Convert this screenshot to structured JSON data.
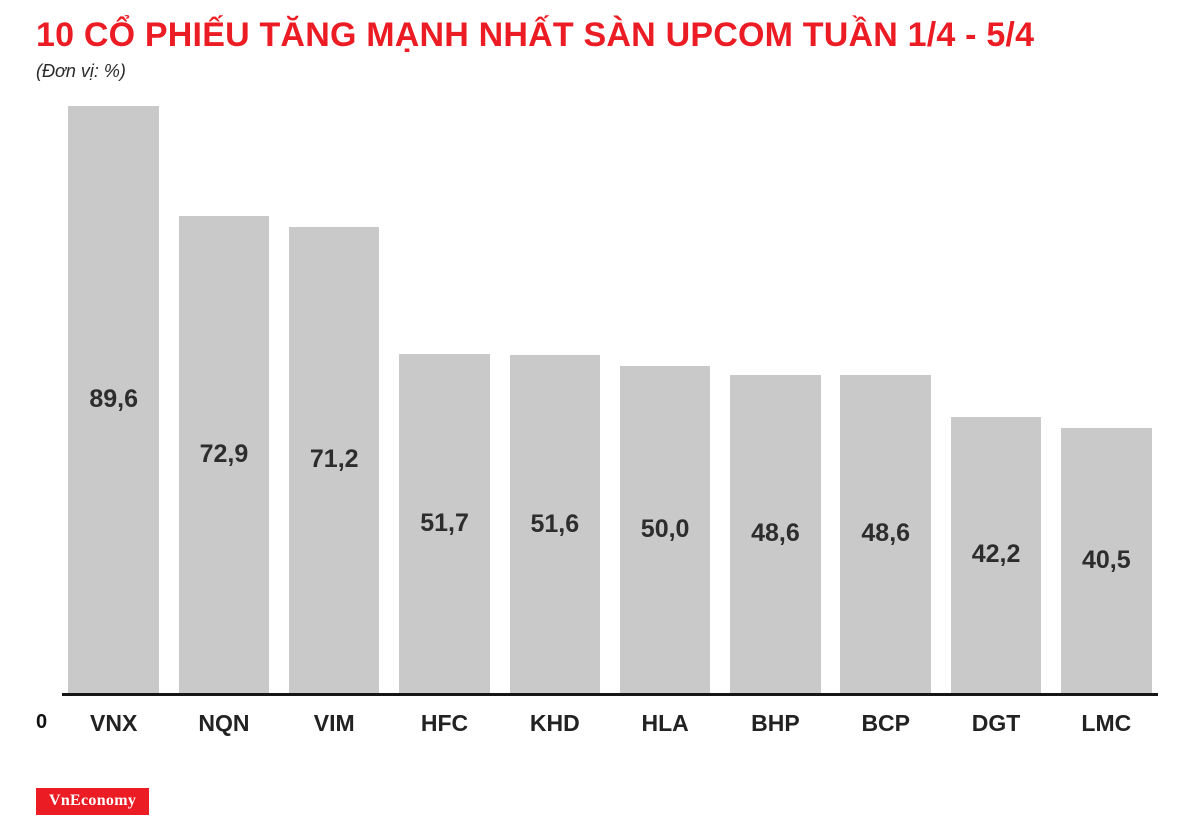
{
  "header": {
    "title": "10 CỔ PHIẾU TĂNG MẠNH NHẤT SÀN UPCOM TUẦN 1/4 - 5/4",
    "unit_label": "(Đơn vị: %)"
  },
  "chart_data": {
    "type": "bar",
    "title": "10 CỔ PHIẾU TĂNG MẠNH NHẤT SÀN UPCOM TUẦN 1/4 - 5/4",
    "unit_label": "(Đơn vị: %)",
    "ylabel": "%",
    "ylim": [
      0,
      90
    ],
    "y_zero_label": "0",
    "grid": "off",
    "legend": "none",
    "categories": [
      "VNX",
      "NQN",
      "VIM",
      "HFC",
      "KHD",
      "HLA",
      "BHP",
      "BCP",
      "DGT",
      "LMC"
    ],
    "values": [
      89.6,
      72.9,
      71.2,
      51.7,
      51.6,
      50.0,
      48.6,
      48.6,
      42.2,
      40.5
    ],
    "value_labels": [
      "89,6",
      "72,9",
      "71,2",
      "51,7",
      "51,6",
      "50,0",
      "48,6",
      "48,6",
      "42,2",
      "40,5"
    ],
    "bar_color": "#c9c9c9",
    "title_color": "#ec1c24",
    "axis_color": "#161616"
  },
  "footer": {
    "logo_text": "VnEconomy",
    "logo_color": "#ec1c24"
  }
}
